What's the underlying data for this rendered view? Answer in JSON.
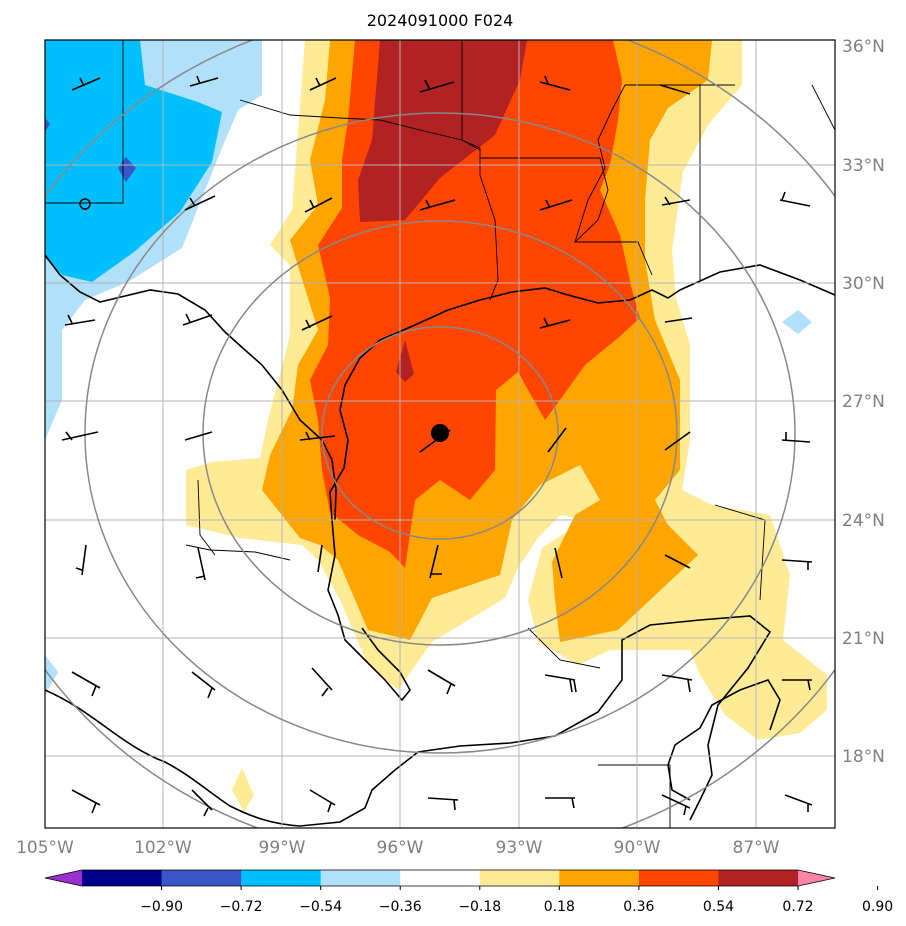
{
  "title": "2024091000 F024",
  "map": {
    "lon_range": [
      -105,
      -85
    ],
    "lat_range": [
      16,
      36
    ],
    "gridlines": true,
    "lon_ticks": [
      {
        "value": -105,
        "label": "105°W"
      },
      {
        "value": -102,
        "label": "102°W"
      },
      {
        "value": -99,
        "label": "99°W"
      },
      {
        "value": -96,
        "label": "96°W"
      },
      {
        "value": -93,
        "label": "93°W"
      },
      {
        "value": -90,
        "label": "90°W"
      },
      {
        "value": -87,
        "label": "87°W"
      }
    ],
    "lat_ticks": [
      {
        "value": 36,
        "label": "36°N"
      },
      {
        "value": 33,
        "label": "33°N"
      },
      {
        "value": 30,
        "label": "30°N"
      },
      {
        "value": 27,
        "label": "27°N"
      },
      {
        "value": 24,
        "label": "24°N"
      },
      {
        "value": 21,
        "label": "21°N"
      },
      {
        "value": 18,
        "label": "18°N"
      }
    ],
    "storm_center": {
      "lon": -94.9,
      "lat": 26.2
    },
    "range_rings_deg": [
      3,
      6,
      9,
      12
    ],
    "open_circle_marker": {
      "lon": -104,
      "lat": 32
    }
  },
  "colorbar": {
    "extend": "both",
    "labels": [
      "−0.90",
      "−0.72",
      "−0.54",
      "−0.36",
      "−0.18",
      "0.18",
      "0.36",
      "0.54",
      "0.72",
      "0.90"
    ],
    "colors": [
      "#9b30d0",
      "#00008b",
      "#3a55c8",
      "#00bfff",
      "#b0e0fa",
      "#ffffff",
      "#ffeb96",
      "#ffa500",
      "#ff4500",
      "#b22222",
      "#ff85a8"
    ]
  },
  "colors": {
    "gridline": "#b4b4b4",
    "ring": "#888888",
    "coast": "#000000"
  }
}
